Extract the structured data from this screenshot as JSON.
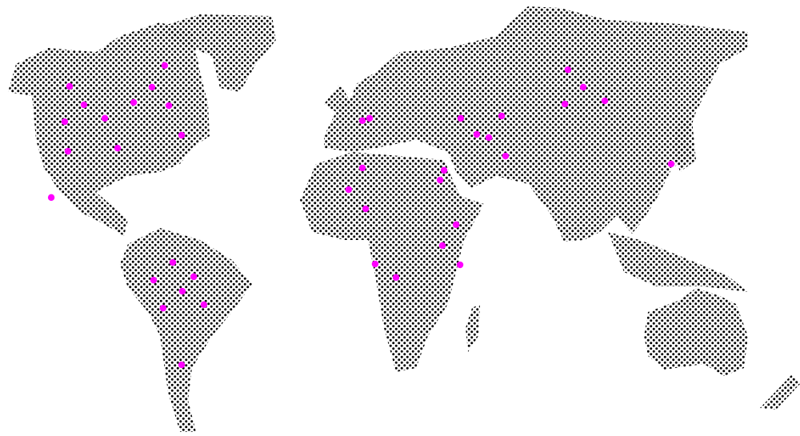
{
  "map": {
    "style": "dotted-world-map",
    "land_color": "#000000",
    "background_color": "#ffffff",
    "marker_color": "#ff00ff",
    "markers": [
      {
        "lon": -126.9,
        "lat": 58.2
      },
      {
        "lon": -120.7,
        "lat": 51.2
      },
      {
        "lon": -129.0,
        "lat": 44.8
      },
      {
        "lon": -111.7,
        "lat": 46.1
      },
      {
        "lon": -99.3,
        "lat": 52.1
      },
      {
        "lon": -91.4,
        "lat": 57.9
      },
      {
        "lon": -85.9,
        "lat": 66.1
      },
      {
        "lon": -84.1,
        "lat": 50.9
      },
      {
        "lon": -78.6,
        "lat": 39.7
      },
      {
        "lon": -106.2,
        "lat": 34.8
      },
      {
        "lon": -127.6,
        "lat": 33.6
      },
      {
        "lon": -134.8,
        "lat": 16.1
      },
      {
        "lon": -82.4,
        "lat": -8.5
      },
      {
        "lon": -73.4,
        "lat": -13.9
      },
      {
        "lon": -90.7,
        "lat": -15.2
      },
      {
        "lon": -78.3,
        "lat": -19.4
      },
      {
        "lon": -86.6,
        "lat": -25.8
      },
      {
        "lon": -69.0,
        "lat": -24.5
      },
      {
        "lon": -78.6,
        "lat": -47.3
      },
      {
        "lon": -0.7,
        "lat": 45.2
      },
      {
        "lon": 2.4,
        "lat": 46.1
      },
      {
        "lon": -0.7,
        "lat": 27.3
      },
      {
        "lon": -6.6,
        "lat": 19.1
      },
      {
        "lon": 0.7,
        "lat": 11.8
      },
      {
        "lon": 34.5,
        "lat": 26.4
      },
      {
        "lon": 32.8,
        "lat": 22.7
      },
      {
        "lon": 39.7,
        "lat": 5.8
      },
      {
        "lon": 33.8,
        "lat": -2.1
      },
      {
        "lon": 41.4,
        "lat": -9.4
      },
      {
        "lon": 4.8,
        "lat": -9.1
      },
      {
        "lon": 13.8,
        "lat": -14.2
      },
      {
        "lon": 41.7,
        "lat": 46.1
      },
      {
        "lon": 48.6,
        "lat": 40.0
      },
      {
        "lon": 53.8,
        "lat": 38.8
      },
      {
        "lon": 59.3,
        "lat": 47.0
      },
      {
        "lon": 61.0,
        "lat": 31.8
      },
      {
        "lon": 87.9,
        "lat": 64.5
      },
      {
        "lon": 94.5,
        "lat": 57.9
      },
      {
        "lon": 103.8,
        "lat": 52.7
      },
      {
        "lon": 86.6,
        "lat": 51.5
      },
      {
        "lon": 132.4,
        "lat": 28.8
      }
    ]
  }
}
